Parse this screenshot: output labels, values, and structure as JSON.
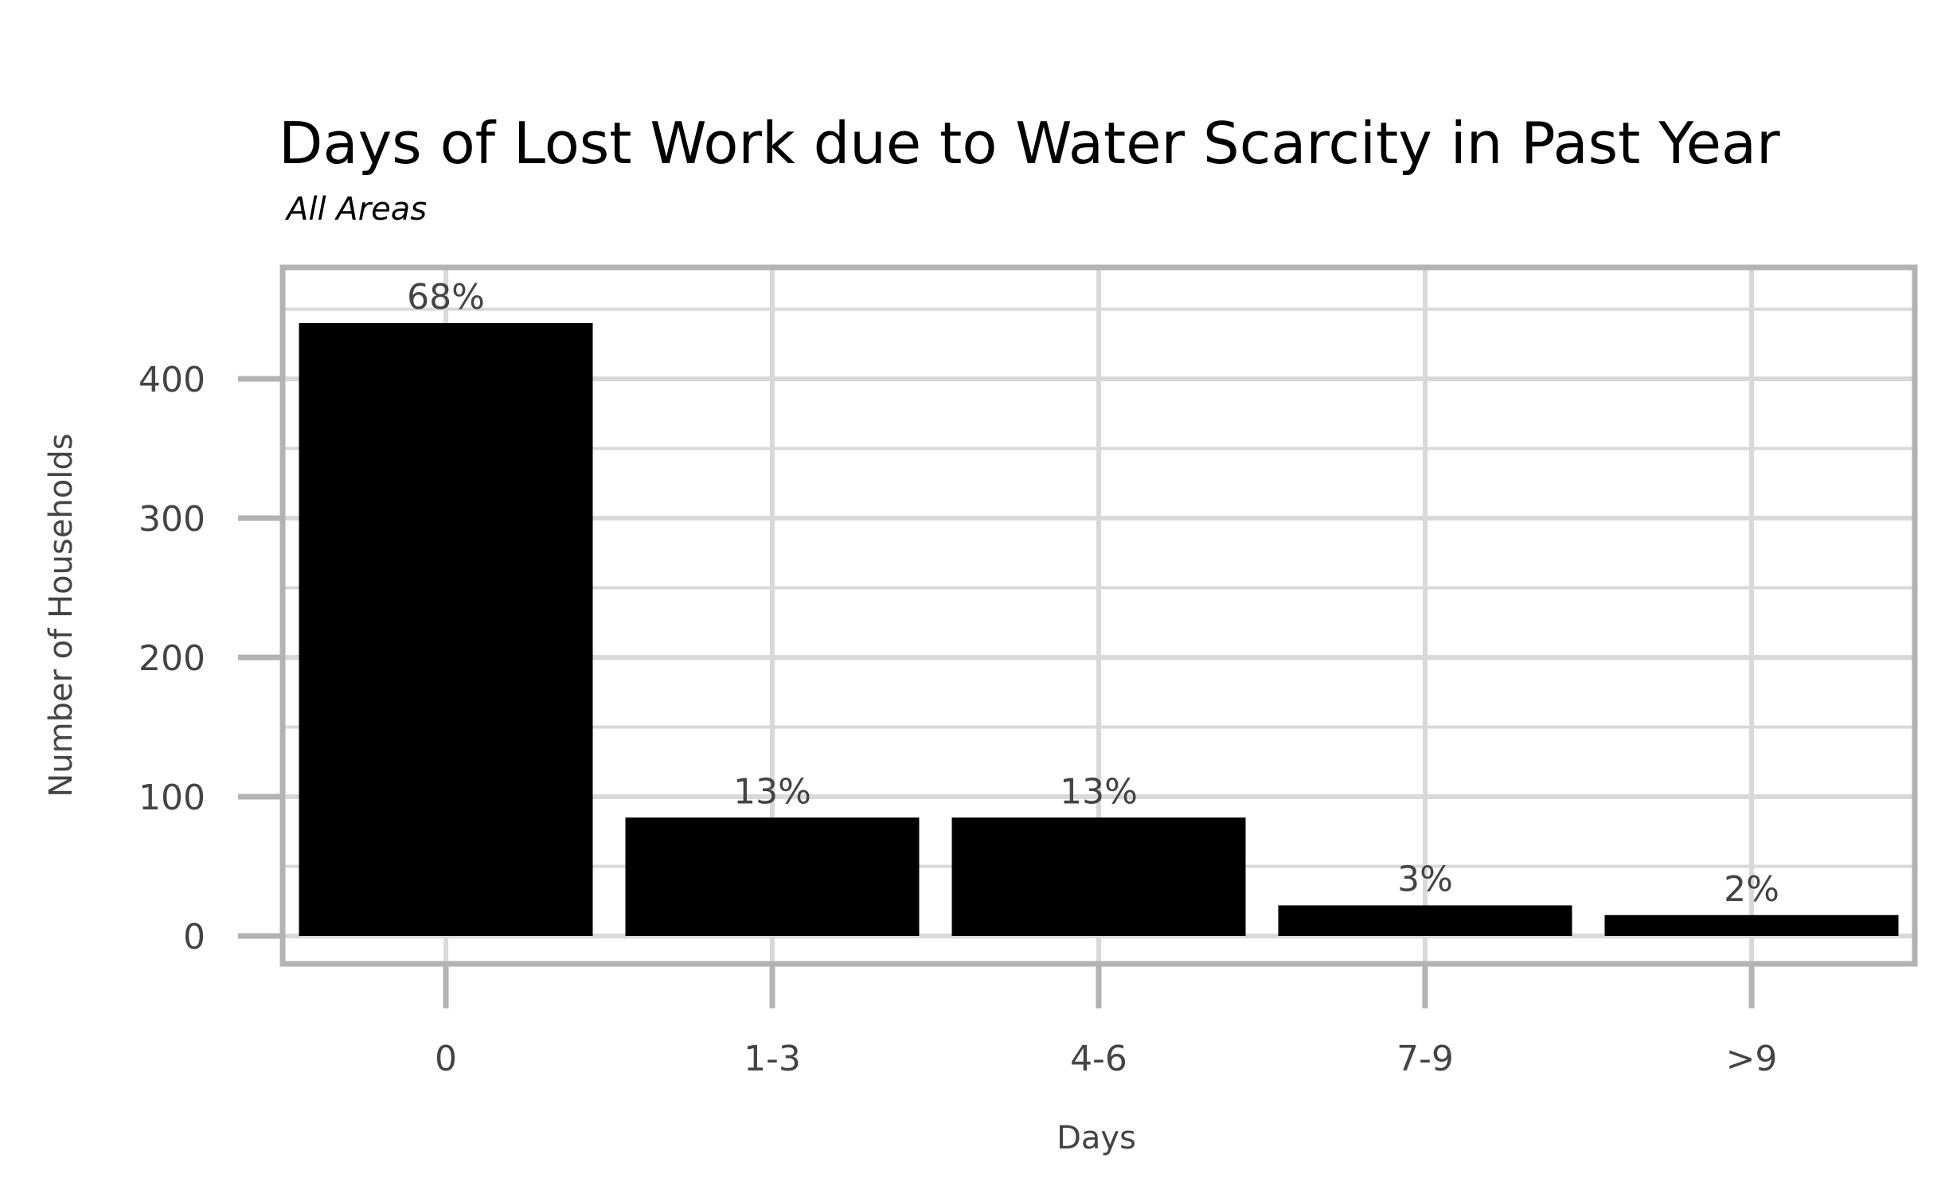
{
  "chart_data": {
    "type": "bar",
    "title": "Days of Lost Work due to Water Scarcity in Past Year",
    "subtitle": "All Areas",
    "xlabel": "Days",
    "ylabel": "Number of Households",
    "categories": [
      "0",
      "1-3",
      "4-6",
      "7-9",
      ">9"
    ],
    "values": [
      440,
      85,
      85,
      22,
      15
    ],
    "data_labels": [
      "68%",
      "13%",
      "13%",
      "3%",
      "2%"
    ],
    "yticks": [
      0,
      100,
      200,
      300,
      400
    ],
    "ytick_labels": [
      "0",
      "100",
      "200",
      "300",
      "400"
    ],
    "ylim": [
      -20,
      480
    ],
    "grid": true,
    "legend": "none",
    "colors": {
      "bar": "#000000",
      "grid": "#d9d9d9",
      "panel_border": "#b3b3b3",
      "tick": "#b3b3b3",
      "text": "#444444"
    }
  }
}
